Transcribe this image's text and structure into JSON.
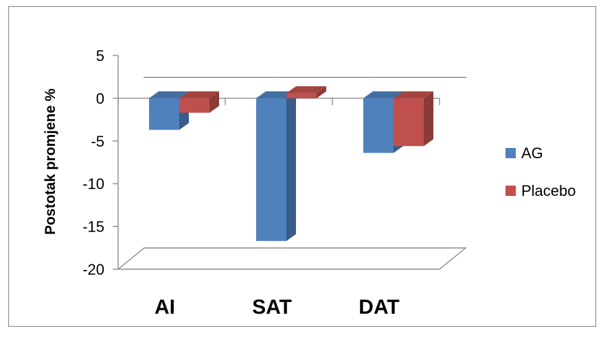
{
  "chart_data": {
    "type": "bar",
    "style": "3d-clustered-column",
    "categories": [
      "AI",
      "SAT",
      "DAT"
    ],
    "series": [
      {
        "name": "AG",
        "values": [
          -3.7,
          -16.7,
          -6.4
        ],
        "color": "#4f81bd"
      },
      {
        "name": "Placebo",
        "values": [
          -1.7,
          0.6,
          -5.6
        ],
        "color": "#c0504d"
      }
    ],
    "ylabel": "Postotak promjene %",
    "xlabel": "",
    "title": "",
    "ylim": [
      -20,
      5
    ],
    "yticks": [
      5,
      0,
      -5,
      -10,
      -15,
      -20
    ],
    "legend_position": "right",
    "grid": false
  }
}
